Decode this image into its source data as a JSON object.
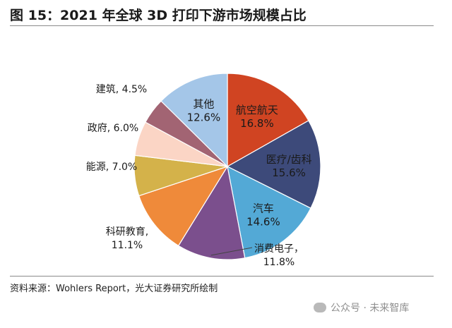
{
  "figure": {
    "title": "图 15：2021 年全球 3D 打印下游市场规模占比",
    "source": "资料来源：Wohlers Report，光大证券研究所绘制"
  },
  "watermark": {
    "text": "公众号 · 未来智库",
    "icon": "wechat-icon"
  },
  "chart_data": {
    "type": "pie",
    "title": "",
    "slices": [
      {
        "label": "航空航天",
        "value": 16.8,
        "display": "16.8%",
        "color": "#d04422",
        "label_position": "inside"
      },
      {
        "label": "医疗/齿科",
        "value": 15.6,
        "display": "15.6%",
        "color": "#3d4a7a",
        "label_position": "inside"
      },
      {
        "label": "汽车",
        "value": 14.6,
        "display": "14.6%",
        "color": "#53a9d6",
        "label_position": "inside"
      },
      {
        "label": "消费电子",
        "value": 11.8,
        "display": "11.8%",
        "color": "#7b4f8d",
        "label_position": "outside"
      },
      {
        "label": "科研教育",
        "value": 11.1,
        "display": "11.1%",
        "color": "#ef8a3a",
        "label_position": "outside"
      },
      {
        "label": "能源",
        "value": 7.0,
        "display": "7.0%",
        "color": "#d4b24a",
        "label_position": "outside"
      },
      {
        "label": "政府",
        "value": 6.0,
        "display": "6.0%",
        "color": "#fbd5c5",
        "label_position": "outside"
      },
      {
        "label": "建筑",
        "value": 4.5,
        "display": "4.5%",
        "color": "#a26473",
        "label_position": "outside"
      },
      {
        "label": "其他",
        "value": 12.6,
        "display": "12.6%",
        "color": "#a4c6e8",
        "label_position": "inside"
      }
    ]
  }
}
